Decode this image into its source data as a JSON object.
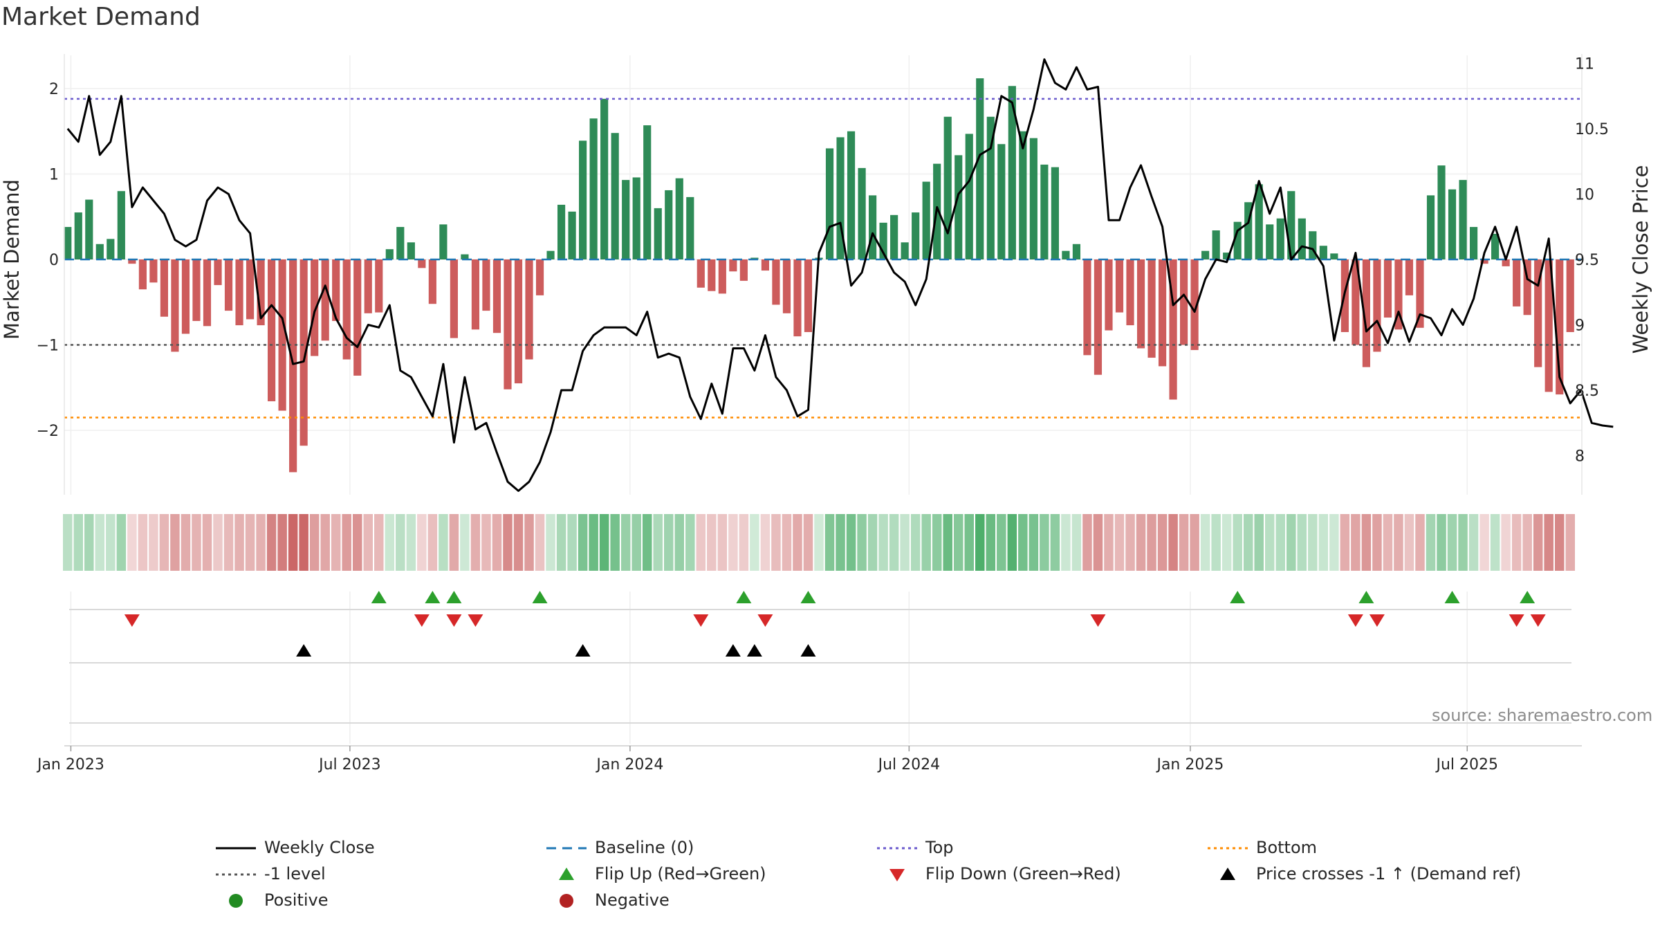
{
  "title": "Market Demand",
  "source": "source: sharemaestro.com",
  "colors": {
    "positive": "#2e8b57",
    "negative": "#cd5c5c",
    "price": "#000000",
    "baseline": "#1f77b4",
    "top": "#6a5acd",
    "bottom": "#ff8c00",
    "minus1": "#555555",
    "flip_up": "#2ca02c",
    "flip_down": "#d62728",
    "cross": "#000000"
  },
  "chart_data": {
    "type": "bar",
    "title": "Market Demand",
    "ylabel": "Market Demand",
    "y2label": "Weekly Close Price",
    "ylim": [
      -2.75,
      2.4
    ],
    "y2lim": [
      7.55,
      11.15
    ],
    "yticks": [
      "2",
      "1",
      "0",
      "−1",
      "−2"
    ],
    "ytick_values": [
      2,
      1,
      0,
      -1,
      -2
    ],
    "y2ticks": [
      "11",
      "10.5",
      "10",
      "9.5",
      "9",
      "8.5",
      "8"
    ],
    "y2tick_values": [
      11,
      10.5,
      10,
      9.5,
      9,
      8.5,
      8
    ],
    "xticks": [
      "Jan 2023",
      "Jul 2023",
      "Jan 2024",
      "Jul 2024",
      "Jan 2025",
      "Jul 2025"
    ],
    "xtick_weeks": [
      0.3,
      26.3,
      52.4,
      78.4,
      104.6,
      130.4
    ],
    "reference_levels": {
      "top": 1.88,
      "bottom": -1.85,
      "minus1": -1.0,
      "baseline": 0
    },
    "demand": [
      0.38,
      0.55,
      0.7,
      0.18,
      0.24,
      0.8,
      -0.05,
      -0.35,
      -0.27,
      -0.67,
      -1.08,
      -0.87,
      -0.72,
      -0.78,
      -0.3,
      -0.6,
      -0.77,
      -0.7,
      -0.77,
      -1.66,
      -1.77,
      -2.49,
      -2.18,
      -1.13,
      -0.95,
      -0.72,
      -1.17,
      -1.36,
      -0.63,
      -0.62,
      0.12,
      0.38,
      0.2,
      -0.1,
      -0.52,
      0.41,
      -0.92,
      0.06,
      -0.82,
      -0.6,
      -0.86,
      -1.52,
      -1.45,
      -1.17,
      -0.42,
      0.1,
      0.64,
      0.56,
      1.39,
      1.65,
      1.88,
      1.48,
      0.93,
      0.96,
      1.57,
      0.6,
      0.81,
      0.95,
      0.73,
      -0.33,
      -0.37,
      -0.4,
      -0.14,
      -0.25,
      0.02,
      -0.13,
      -0.53,
      -0.63,
      -0.9,
      -0.85,
      0.02,
      1.3,
      1.43,
      1.5,
      1.07,
      0.75,
      0.43,
      0.52,
      0.2,
      0.55,
      0.91,
      1.12,
      1.67,
      1.22,
      1.47,
      2.12,
      1.67,
      1.35,
      2.03,
      1.5,
      1.42,
      1.11,
      1.08,
      0.1,
      0.18,
      -1.12,
      -1.35,
      -0.83,
      -0.62,
      -0.77,
      -1.04,
      -1.15,
      -1.25,
      -1.64,
      -1.0,
      -1.06,
      0.1,
      0.34,
      0.08,
      0.44,
      0.67,
      0.88,
      0.41,
      0.48,
      0.8,
      0.48,
      0.33,
      0.16,
      0.07,
      -0.85,
      -1.0,
      -1.26,
      -1.08,
      -0.68,
      -0.82,
      -0.42,
      -0.8,
      0.75,
      1.1,
      0.82,
      0.93,
      0.38,
      -0.05,
      0.3,
      -0.08,
      -0.55,
      -0.65,
      -1.26,
      -1.55,
      -1.58,
      -0.85
    ],
    "price": [
      10.5,
      10.4,
      10.75,
      10.3,
      10.4,
      10.75,
      9.9,
      10.05,
      9.95,
      9.85,
      9.65,
      9.6,
      9.65,
      9.95,
      10.05,
      10.0,
      9.8,
      9.7,
      9.05,
      9.15,
      9.05,
      8.7,
      8.72,
      9.1,
      9.3,
      9.05,
      8.9,
      8.83,
      9.0,
      8.98,
      9.15,
      8.65,
      8.6,
      8.45,
      8.3,
      8.7,
      8.1,
      8.6,
      8.2,
      8.25,
      8.02,
      7.8,
      7.73,
      7.8,
      7.95,
      8.18,
      8.5,
      8.5,
      8.8,
      8.92,
      8.98,
      8.98,
      8.98,
      8.92,
      9.1,
      8.75,
      8.78,
      8.75,
      8.45,
      8.28,
      8.55,
      8.32,
      8.82,
      8.82,
      8.65,
      8.92,
      8.6,
      8.5,
      8.3,
      8.35,
      9.55,
      9.75,
      9.78,
      9.3,
      9.4,
      9.7,
      9.55,
      9.4,
      9.33,
      9.15,
      9.35,
      9.9,
      9.7,
      10.0,
      10.1,
      10.3,
      10.35,
      10.75,
      10.7,
      10.35,
      10.65,
      11.03,
      10.85,
      10.8,
      10.97,
      10.8,
      10.82,
      9.8,
      9.8,
      10.05,
      10.22,
      9.98,
      9.75,
      9.15,
      9.23,
      9.1,
      9.35,
      9.5,
      9.48,
      9.72,
      9.78,
      10.1,
      9.85,
      10.05,
      9.5,
      9.6,
      9.58,
      9.45,
      8.88,
      9.25,
      9.55,
      8.95,
      9.03,
      8.86,
      9.1,
      8.87,
      9.08,
      9.05,
      8.92,
      9.12,
      9.0,
      9.2,
      9.55,
      9.75,
      9.5,
      9.75,
      9.35,
      9.3,
      9.66,
      8.6,
      8.4,
      8.5,
      8.25,
      8.23,
      8.22
    ],
    "flip_up_weeks": [
      29,
      34,
      36,
      44,
      63,
      69,
      109,
      121,
      129,
      136
    ],
    "flip_down_weeks": [
      6,
      33,
      36,
      38,
      59,
      65,
      96,
      120,
      122,
      135,
      137
    ],
    "price_cross_weeks": [
      22,
      48,
      62,
      64,
      69
    ]
  },
  "legend": [
    {
      "label": "Weekly Close",
      "marker": "line",
      "color": "#000000"
    },
    {
      "label": "Baseline (0)",
      "marker": "dash",
      "color": "#1f77b4"
    },
    {
      "label": "Top",
      "marker": "dot",
      "color": "#6a5acd"
    },
    {
      "label": "Bottom",
      "marker": "dot",
      "color": "#ff8c00"
    },
    {
      "label": "-1 level",
      "marker": "dot",
      "color": "#555555"
    },
    {
      "label": "Flip Up (Red→Green)",
      "marker": "tri-up",
      "color": "#2ca02c"
    },
    {
      "label": "Flip Down (Green→Red)",
      "marker": "tri-down",
      "color": "#d62728"
    },
    {
      "label": "Price crosses -1 ↑ (Demand ref)",
      "marker": "tri-up",
      "color": "#000000"
    },
    {
      "label": "Positive",
      "marker": "circle",
      "color": "#228b22"
    },
    {
      "label": "Negative",
      "marker": "circle",
      "color": "#b22222"
    }
  ]
}
